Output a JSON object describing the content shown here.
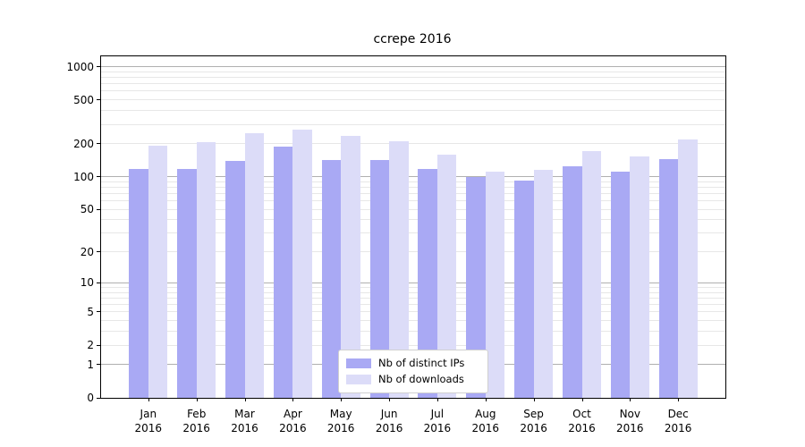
{
  "chart_data": {
    "type": "bar",
    "title": "ccrepe 2016",
    "months": [
      "Jan",
      "Feb",
      "Mar",
      "Apr",
      "May",
      "Jun",
      "Jul",
      "Aug",
      "Sep",
      "Oct",
      "Nov",
      "Dec"
    ],
    "year": "2016",
    "categories": [
      "Jan 2016",
      "Feb 2016",
      "Mar 2016",
      "Apr 2016",
      "May 2016",
      "Jun 2016",
      "Jul 2016",
      "Aug 2016",
      "Sep 2016",
      "Oct 2016",
      "Nov 2016",
      "Dec 2016"
    ],
    "series": [
      {
        "name": "Nb of distinct IPs",
        "color": "#a9a9f4",
        "values": [
          118,
          118,
          139,
          187,
          142,
          141,
          117,
          99,
          92,
          124,
          112,
          144
        ]
      },
      {
        "name": "Nb of downloads",
        "color": "#dcdcf8",
        "values": [
          190,
          205,
          247,
          270,
          236,
          211,
          160,
          112,
          115,
          170,
          152,
          218
        ]
      }
    ],
    "y_ticks": [
      1000,
      500,
      200,
      100,
      50,
      20,
      10,
      5,
      2,
      1,
      0
    ],
    "y_scale": "log10(value+1)",
    "ylim": [
      0,
      1240
    ],
    "grid": true,
    "major_grid_color": "#b0b0b0",
    "minor_grid_color": "#e7e7e7",
    "legend_position": "lower center"
  }
}
